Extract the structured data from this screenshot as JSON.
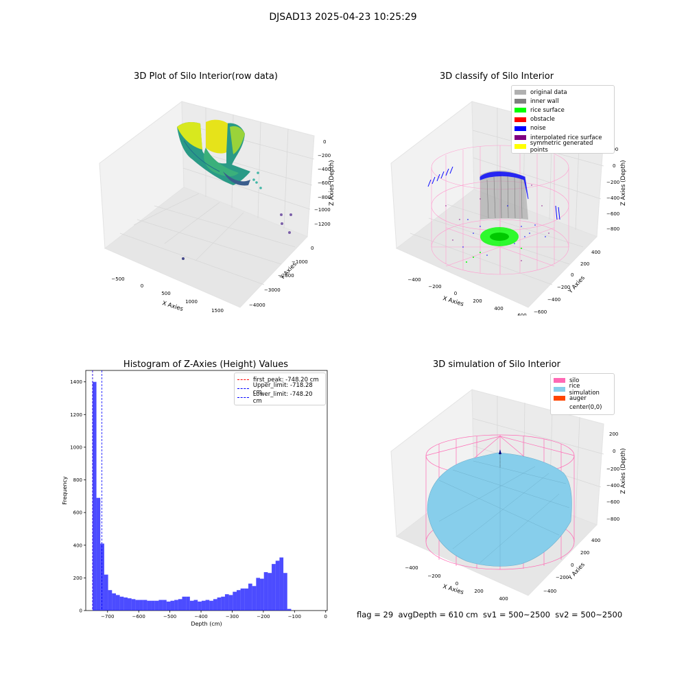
{
  "figure_title": "DJSAD13 2025-04-23 10:25:29",
  "status_line": "flag = 29  avgDepth = 610 cm  sv1 = 500~2500  sv2 = 500~2500",
  "panels": {
    "raw": {
      "title": "3D Plot of Silo Interior(row data)",
      "xlabel": "X Axies",
      "ylabel": "Y Axies",
      "zlabel": "Z Axies (Depth)",
      "xticks": [
        "−500",
        "0",
        "500",
        "1000",
        "1500"
      ],
      "yticks": [
        "0",
        "−1000",
        "−2000",
        "−3000",
        "−4000"
      ],
      "zticks": [
        "0",
        "−200",
        "−400",
        "−600",
        "−800",
        "−1000",
        "−1200"
      ]
    },
    "classify": {
      "title": "3D classify of Silo Interior",
      "xlabel": "X Axies",
      "ylabel": "Y Axies",
      "zlabel": "Z Axies (Depth)",
      "xticks": [
        "−400",
        "−200",
        "0",
        "200",
        "400",
        "600"
      ],
      "yticks": [
        "400",
        "200",
        "0",
        "−200",
        "−400",
        "−600"
      ],
      "zticks": [
        "200",
        "0",
        "−200",
        "−400",
        "−600",
        "−800"
      ],
      "legend": [
        {
          "label": "original data",
          "color": "#b0b0b0"
        },
        {
          "label": "inner wall",
          "color": "#808080"
        },
        {
          "label": "rice surface",
          "color": "#00ff00"
        },
        {
          "label": "obstacle",
          "color": "#ff0000"
        },
        {
          "label": "noise",
          "color": "#0000ff"
        },
        {
          "label": "interpolated rice surface",
          "color": "#800080"
        },
        {
          "label": "symmetric generated points",
          "color": "#ffff00"
        }
      ]
    },
    "simulation": {
      "title": "3D simulation of Silo Interior",
      "xlabel": "X Axies",
      "ylabel": "Y Axies",
      "zlabel": "Z Axies (Depth)",
      "xticks": [
        "−400",
        "−200",
        "0",
        "200",
        "400"
      ],
      "yticks": [
        "400",
        "200",
        "0",
        "−200",
        "−400"
      ],
      "zticks": [
        "200",
        "0",
        "−200",
        "−400",
        "−600",
        "−800"
      ],
      "legend": [
        {
          "label": "silo",
          "color": "#ff69b4"
        },
        {
          "label": "rice simulation",
          "color": "#87ceeb"
        },
        {
          "label": "auger",
          "color": "#ff4500"
        },
        {
          "label": "center(0,0)",
          "color": "#ffffff"
        }
      ]
    }
  },
  "chart_data": {
    "type": "bar",
    "title": "Histogram of Z-Axies (Height) Values",
    "xlabel": "Depth (cm)",
    "ylabel": "Frequency",
    "xlim": [
      -770,
      5
    ],
    "ylim": [
      0,
      1470
    ],
    "xticks": [
      -700,
      -600,
      -500,
      -400,
      -300,
      -200,
      -100,
      0
    ],
    "xtick_labels": [
      "−700",
      "−600",
      "−500",
      "−400",
      "−300",
      "−200",
      "−100",
      "0"
    ],
    "yticks": [
      0,
      200,
      400,
      600,
      800,
      1000,
      1200,
      1400
    ],
    "bin_start": -748.2,
    "bin_width": 12.5,
    "values": [
      1400,
      690,
      410,
      220,
      125,
      105,
      95,
      85,
      80,
      75,
      70,
      65,
      65,
      65,
      60,
      60,
      60,
      65,
      65,
      55,
      60,
      65,
      70,
      85,
      85,
      60,
      65,
      55,
      60,
      65,
      60,
      70,
      80,
      85,
      100,
      95,
      115,
      125,
      135,
      135,
      165,
      150,
      200,
      195,
      235,
      230,
      285,
      305,
      325,
      230,
      10
    ],
    "bar_color": "#0000ff",
    "bar_opacity": 0.7,
    "lines": [
      {
        "label": "first_peak: -748.20 cm",
        "value": -748.2,
        "color": "#ff0000"
      },
      {
        "label": "Upper_limit: -718.28 cm",
        "value": -718.28,
        "color": "#0000ff"
      },
      {
        "label": "Lower_limit: -748.20 cm",
        "value": -748.2,
        "color": "#0000ff"
      }
    ]
  }
}
